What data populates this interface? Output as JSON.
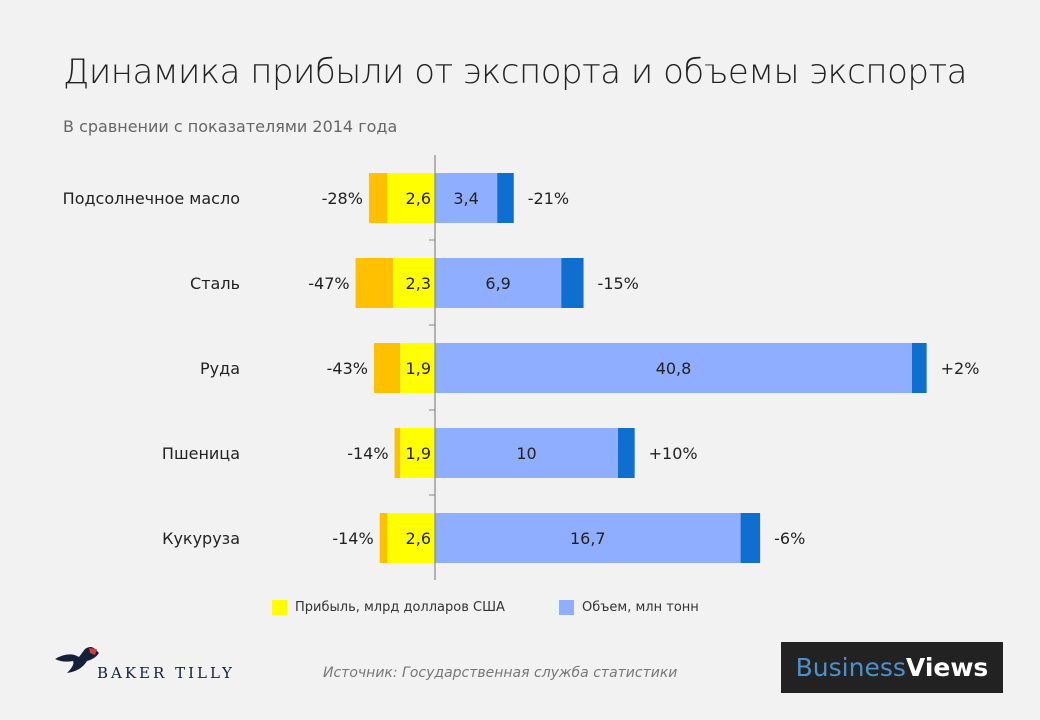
{
  "title": "Динамика прибыли от экспорта и объемы экспорта",
  "subtitle": "В сравнении с показателями 2014 года",
  "chart_data": {
    "type": "bar",
    "orientation": "horizontal-diverging",
    "categories": [
      "Подсолнечное масло",
      "Сталь",
      "Руда",
      "Пшеница",
      "Кукуруза"
    ],
    "series": [
      {
        "name": "Прибыль, млрд долларов США",
        "side": "left",
        "values": [
          2.6,
          2.3,
          1.9,
          1.9,
          2.6
        ],
        "labels": [
          "2,6",
          "2,3",
          "1,9",
          "1,9",
          "2,6"
        ],
        "change_labels": [
          "-28%",
          "-47%",
          "-43%",
          "-14%",
          "-14%"
        ],
        "change": [
          -28,
          -47,
          -43,
          -14,
          -14
        ]
      },
      {
        "name": "Объем, млн тонн",
        "side": "right",
        "values": [
          3.4,
          6.9,
          40.8,
          10,
          16.7
        ],
        "labels": [
          "3,4",
          "6,9",
          "40,8",
          "10",
          "16,7"
        ],
        "change_labels": [
          "-21%",
          "-15%",
          "+2%",
          "+10%",
          "-6%"
        ],
        "change": [
          -21,
          -15,
          2,
          10,
          -6
        ]
      }
    ],
    "legend_position": "bottom",
    "grid": false
  },
  "colors": {
    "profit": "#ffff00",
    "profit_change": "#ffc000",
    "volume": "#8faeff",
    "volume_change": "#0f6fd1"
  },
  "source": "Источник: Государственная служба статистики",
  "logos": {
    "baker_tilly": "BAKER TILLY",
    "business": "Business",
    "views": "Views"
  }
}
